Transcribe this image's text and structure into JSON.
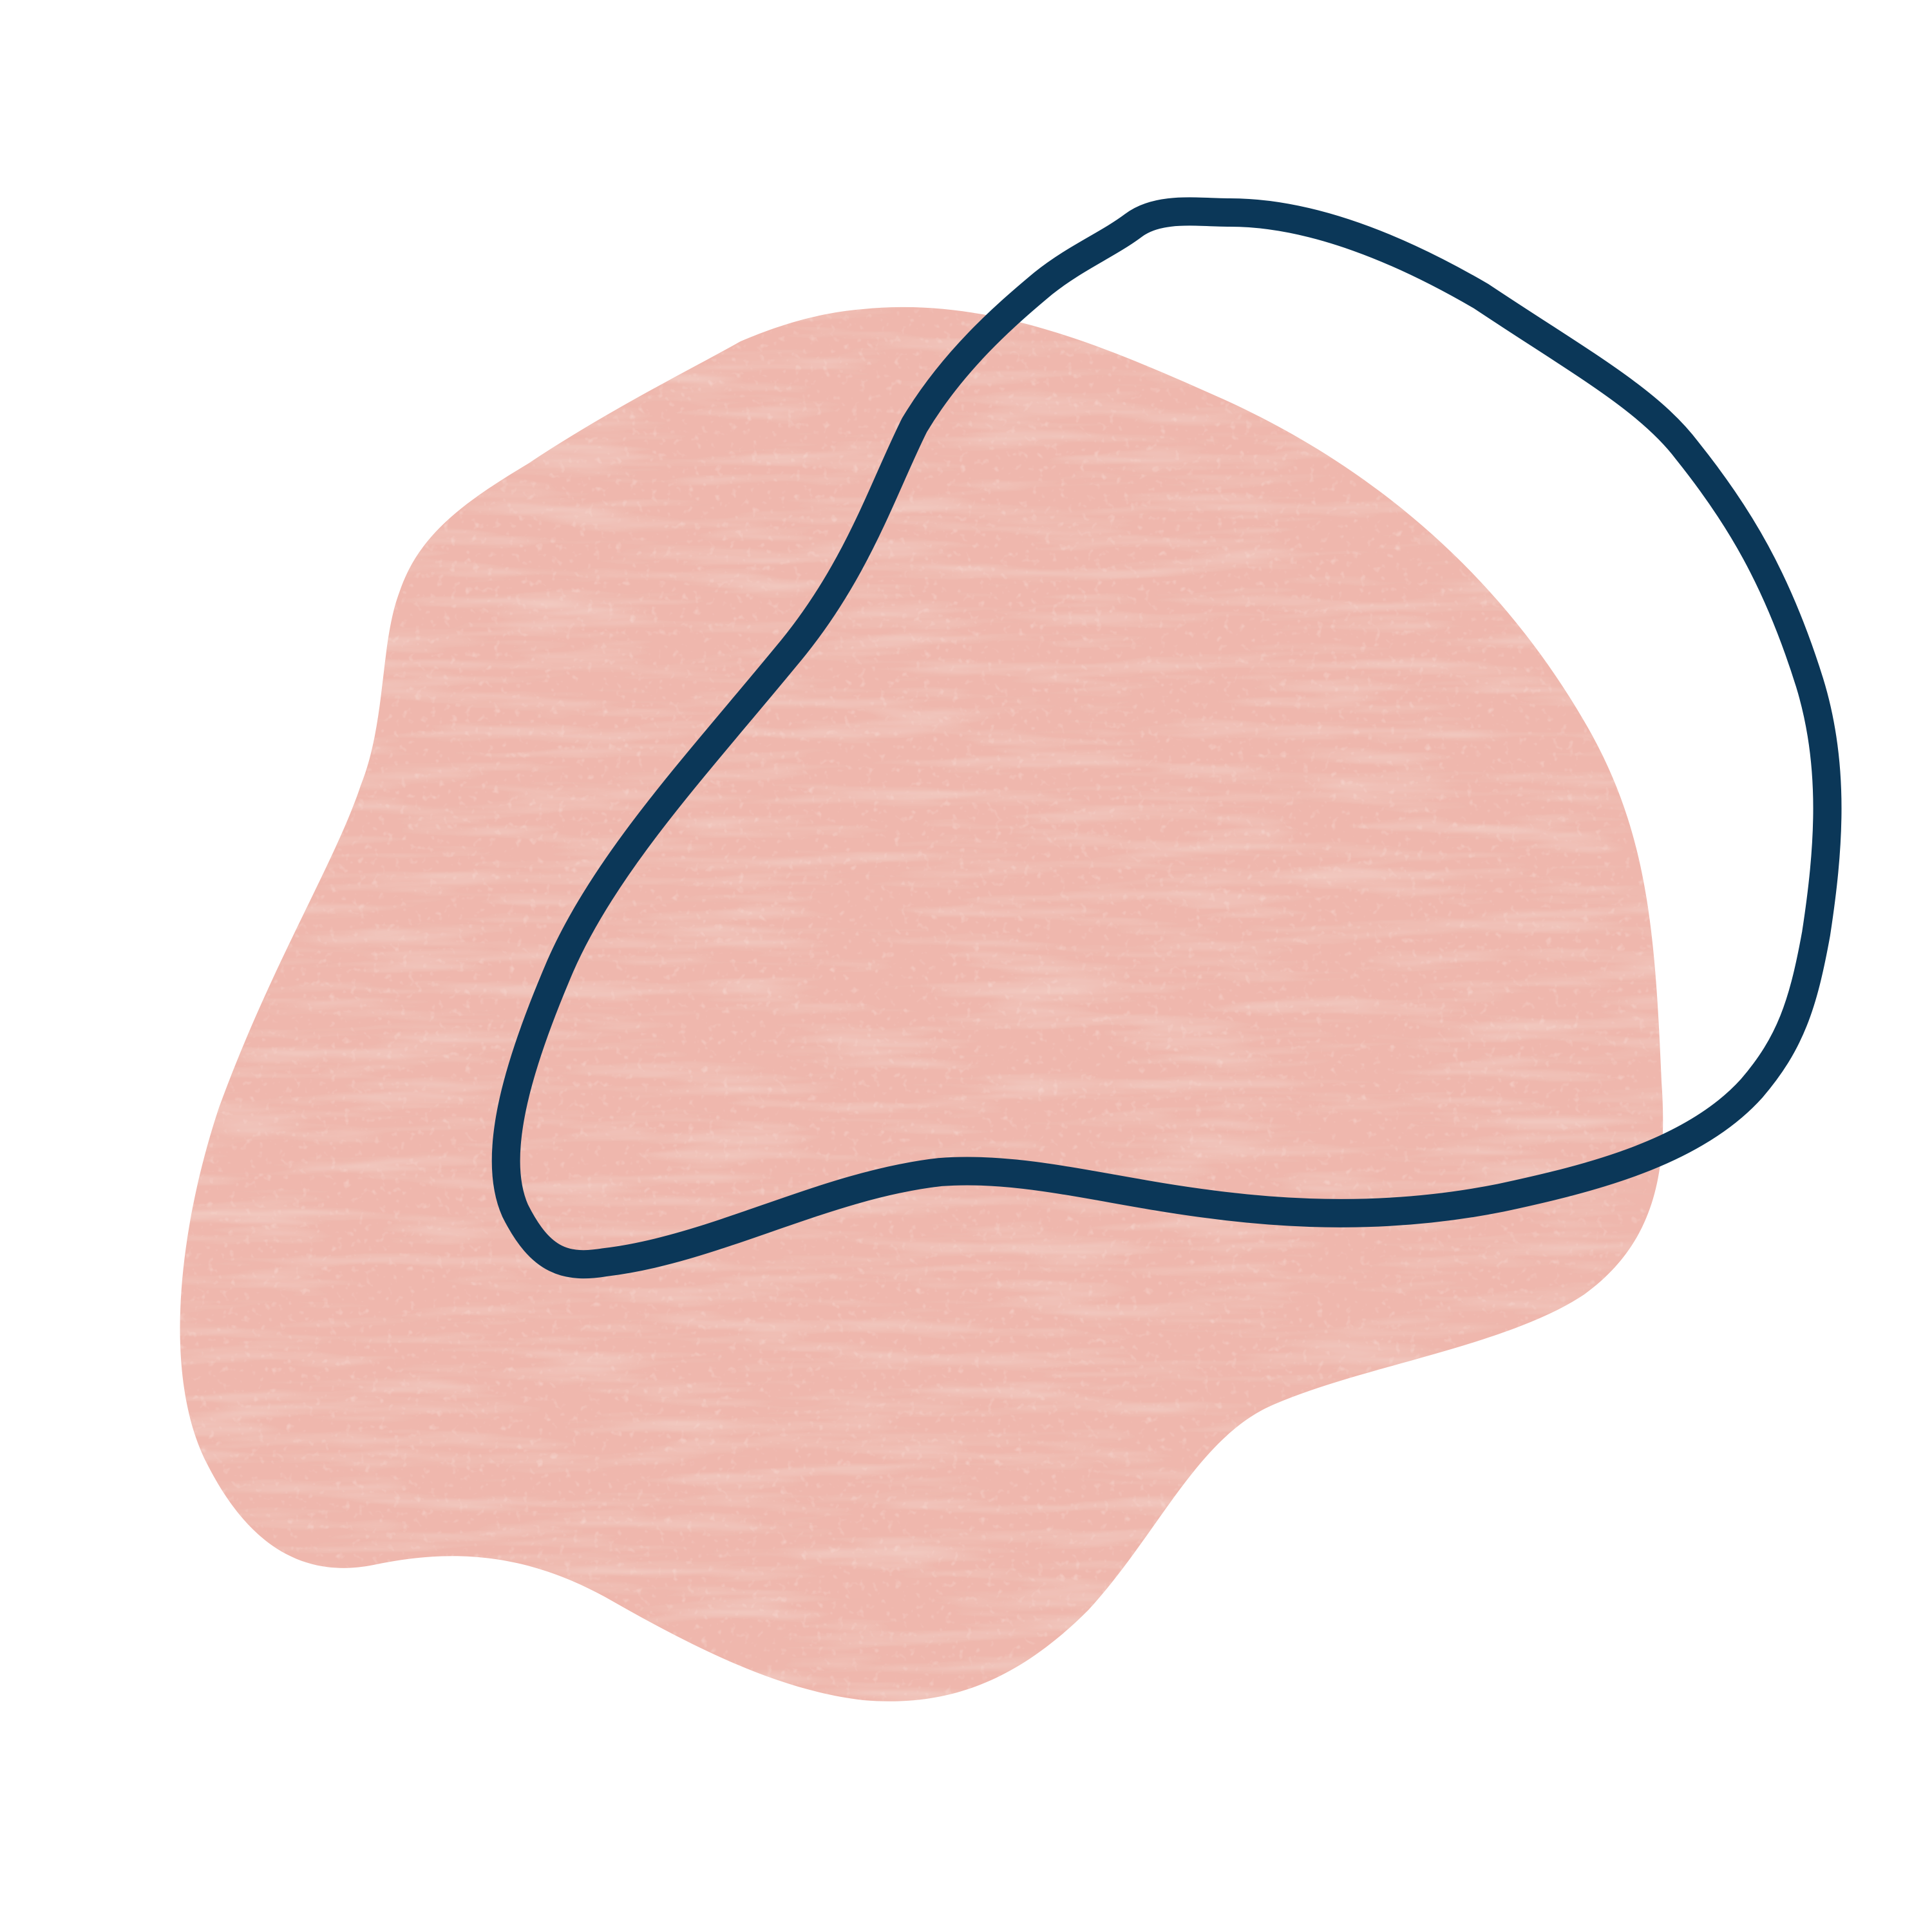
{
  "artwork": {
    "subject": "abstract-blob-with-outline-loop",
    "colors": {
      "background": "#ffffff",
      "blob_fill": "#efb7ad",
      "blob_texture": "#e3a292",
      "blob_highlight": "#f6cbc2",
      "outline_stroke": "#0b3758"
    },
    "shapes": [
      {
        "name": "pink-blob",
        "style": "textured-paint"
      },
      {
        "name": "navy-outline-loop",
        "style": "hand-drawn-stroke"
      }
    ]
  }
}
